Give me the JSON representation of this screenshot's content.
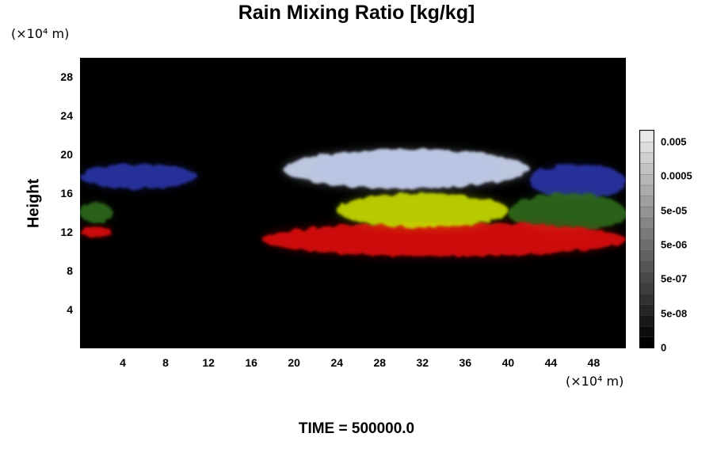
{
  "chart_data": {
    "type": "heatmap",
    "title": "Rain Mixing Ratio [kg/kg]",
    "ylabel": "Height",
    "y_unit": "(×10⁴ m)",
    "x_unit": "(×10⁴ m)",
    "footer": "TIME = 500000.0",
    "x_ticks": [
      "4",
      "8",
      "12",
      "16",
      "20",
      "24",
      "28",
      "32",
      "36",
      "40",
      "44",
      "48"
    ],
    "y_ticks": [
      "4",
      "8",
      "12",
      "16",
      "20",
      "24",
      "28"
    ],
    "xlim": [
      0,
      51
    ],
    "ylim": [
      0,
      30
    ],
    "colorbar_labels": [
      "0.005",
      "0.0005",
      "5e-05",
      "5e-06",
      "5e-07",
      "5e-08",
      "0"
    ],
    "colors": {
      "background": "#000000",
      "layer_high": "#c8d2ec",
      "layer_blue": "#2a36a8",
      "layer_yellow": "#c8dc00",
      "layer_green": "#2e6a1a",
      "layer_red": "#e01010"
    },
    "layers": [
      {
        "color": "white-blue",
        "x_range": [
          19,
          42
        ],
        "y_range": [
          16.5,
          20.5
        ]
      },
      {
        "color": "blue",
        "x_range": [
          0,
          11
        ],
        "y_range": [
          16.5,
          19
        ]
      },
      {
        "color": "blue",
        "x_range": [
          42,
          51
        ],
        "y_range": [
          15.5,
          19
        ]
      },
      {
        "color": "yellow",
        "x_range": [
          24,
          40
        ],
        "y_range": [
          12.5,
          16
        ]
      },
      {
        "color": "yellow-green",
        "x_range": [
          0,
          3
        ],
        "y_range": [
          13,
          15
        ]
      },
      {
        "color": "yellow-green",
        "x_range": [
          40,
          51
        ],
        "y_range": [
          12,
          16
        ]
      },
      {
        "color": "red",
        "x_range": [
          0,
          3
        ],
        "y_range": [
          11.5,
          12.5
        ]
      },
      {
        "color": "red",
        "x_range": [
          17,
          51
        ],
        "y_range": [
          9.5,
          13
        ]
      }
    ]
  }
}
